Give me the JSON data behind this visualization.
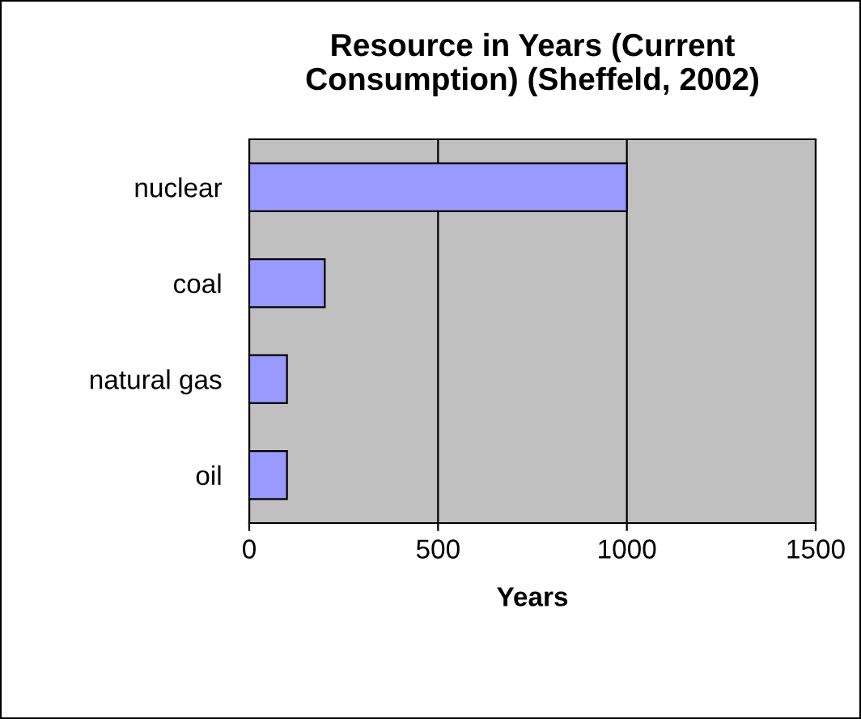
{
  "chart_data": {
    "type": "bar",
    "orientation": "horizontal",
    "title": "Resource in Years (Current\nConsumption) (Sheffeld, 2002)",
    "xlabel": "Years",
    "categories": [
      "nuclear",
      "coal",
      "natural gas",
      "oil"
    ],
    "values": [
      1000,
      200,
      100,
      100
    ],
    "color": "#9999ff",
    "xlim": [
      0,
      1500
    ],
    "xticks": [
      0,
      500,
      1000,
      1500
    ],
    "grid": "x",
    "legend": false
  }
}
